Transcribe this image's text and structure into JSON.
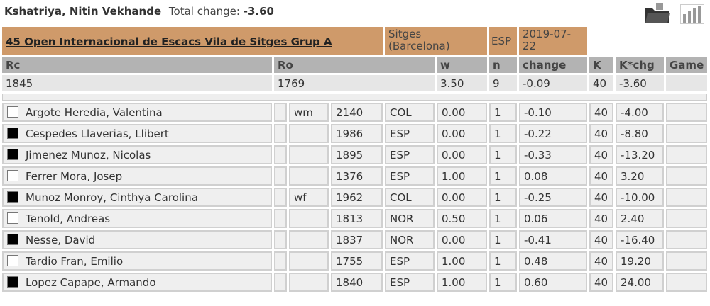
{
  "player": {
    "name": "Kshatriya, Nitin Vekhande",
    "total_change_label": "Total change:",
    "total_change": "-3.60"
  },
  "icons": [
    "folder-icon",
    "bar-chart-icon"
  ],
  "tournament": {
    "name": "45 Open Internacional de Escacs Vila de Sitges Grup A",
    "city": "Sitges (Barcelona)",
    "country": "ESP",
    "date": "2019-07-22"
  },
  "headers": {
    "rc": "Rc",
    "ro": "Ro",
    "w": "w",
    "n": "n",
    "change": "change",
    "k": "K",
    "kchg": "K*chg",
    "game": "Game"
  },
  "summary": {
    "rc": "1845",
    "ro": "1769",
    "w": "3.50",
    "n": "9",
    "change": "-0.09",
    "k": "40",
    "kchg": "-3.60"
  },
  "colors": {
    "tournament_bg": "#cf9a6a",
    "header_bg": "#b3b3b3"
  },
  "games": [
    {
      "color": "white",
      "name": "Argote Heredia, Valentina",
      "title": "wm",
      "rating": "2140",
      "fed": "COL",
      "w": "0.00",
      "n": "1",
      "change": "-0.10",
      "k": "40",
      "kchg": "-4.00"
    },
    {
      "color": "black",
      "name": "Cespedes Llaverias, Llibert",
      "title": "",
      "rating": "1986",
      "fed": "ESP",
      "w": "0.00",
      "n": "1",
      "change": "-0.22",
      "k": "40",
      "kchg": "-8.80"
    },
    {
      "color": "black",
      "name": "Jimenez Munoz, Nicolas",
      "title": "",
      "rating": "1895",
      "fed": "ESP",
      "w": "0.00",
      "n": "1",
      "change": "-0.33",
      "k": "40",
      "kchg": "-13.20"
    },
    {
      "color": "white",
      "name": "Ferrer Mora, Josep",
      "title": "",
      "rating": "1376",
      "fed": "ESP",
      "w": "1.00",
      "n": "1",
      "change": "0.08",
      "k": "40",
      "kchg": "3.20"
    },
    {
      "color": "black",
      "name": "Munoz Monroy, Cinthya Carolina",
      "title": "wf",
      "rating": "1962",
      "fed": "COL",
      "w": "0.00",
      "n": "1",
      "change": "-0.25",
      "k": "40",
      "kchg": "-10.00"
    },
    {
      "color": "white",
      "name": "Tenold, Andreas",
      "title": "",
      "rating": "1813",
      "fed": "NOR",
      "w": "0.50",
      "n": "1",
      "change": "0.06",
      "k": "40",
      "kchg": "2.40"
    },
    {
      "color": "black",
      "name": "Nesse, David",
      "title": "",
      "rating": "1837",
      "fed": "NOR",
      "w": "0.00",
      "n": "1",
      "change": "-0.41",
      "k": "40",
      "kchg": "-16.40"
    },
    {
      "color": "white",
      "name": "Tardio Fran, Emilio",
      "title": "",
      "rating": "1755",
      "fed": "ESP",
      "w": "1.00",
      "n": "1",
      "change": "0.48",
      "k": "40",
      "kchg": "19.20"
    },
    {
      "color": "black",
      "name": "Lopez Capape, Armando",
      "title": "",
      "rating": "1840",
      "fed": "ESP",
      "w": "1.00",
      "n": "1",
      "change": "0.60",
      "k": "40",
      "kchg": "24.00"
    }
  ]
}
